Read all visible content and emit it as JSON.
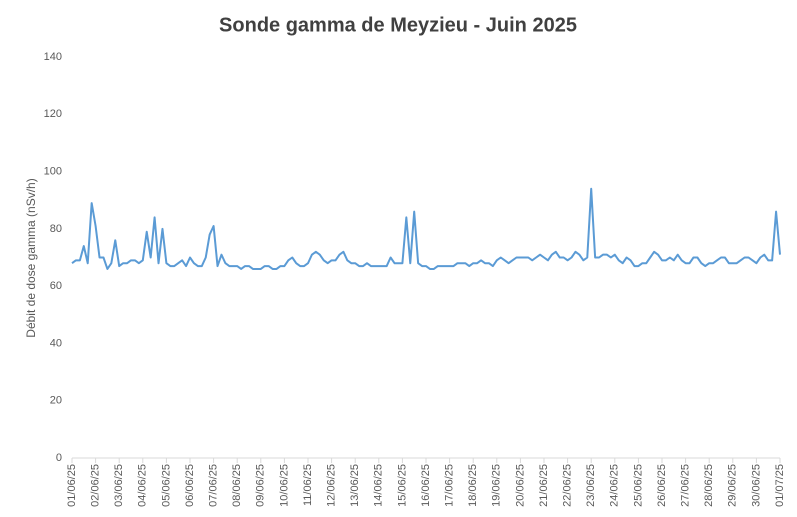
{
  "chart_data": {
    "type": "line",
    "title": "Sonde gamma de Meyzieu - Juin 2025",
    "y_label": "Débit de dose gamma (nSv/h)",
    "categories": [
      "01/06/25",
      null,
      null,
      null,
      null,
      null,
      "02/06/25",
      null,
      null,
      null,
      null,
      null,
      "03/06/25",
      null,
      null,
      null,
      null,
      null,
      "04/06/25",
      null,
      null,
      null,
      null,
      null,
      "05/06/25",
      null,
      null,
      null,
      null,
      null,
      "06/06/25",
      null,
      null,
      null,
      null,
      null,
      "07/06/25",
      null,
      null,
      null,
      null,
      null,
      "08/06/25",
      null,
      null,
      null,
      null,
      null,
      "09/06/25",
      null,
      null,
      null,
      null,
      null,
      "10/06/25",
      null,
      null,
      null,
      null,
      null,
      "11/06/25",
      null,
      null,
      null,
      null,
      null,
      "12/06/25",
      null,
      null,
      null,
      null,
      null,
      "13/06/25",
      null,
      null,
      null,
      null,
      null,
      "14/06/25",
      null,
      null,
      null,
      null,
      null,
      "15/06/25",
      null,
      null,
      null,
      null,
      null,
      "16/06/25",
      null,
      null,
      null,
      null,
      null,
      "17/06/25",
      null,
      null,
      null,
      null,
      null,
      "18/06/25",
      null,
      null,
      null,
      null,
      null,
      "19/06/25",
      null,
      null,
      null,
      null,
      null,
      "20/06/25",
      null,
      null,
      null,
      null,
      null,
      "21/06/25",
      null,
      null,
      null,
      null,
      null,
      "22/06/25",
      null,
      null,
      null,
      null,
      null,
      "23/06/25",
      null,
      null,
      null,
      null,
      null,
      "24/06/25",
      null,
      null,
      null,
      null,
      null,
      "25/06/25",
      null,
      null,
      null,
      null,
      null,
      "26/06/25",
      null,
      null,
      null,
      null,
      null,
      "27/06/25",
      null,
      null,
      null,
      null,
      null,
      "28/06/25",
      null,
      null,
      null,
      null,
      null,
      "29/06/25",
      null,
      null,
      null,
      null,
      null,
      "30/06/25",
      null,
      null,
      null,
      null,
      null,
      "01/07/25"
    ],
    "series": [
      {
        "name": "Débit de dose gamma",
        "color": "#5b9bd5",
        "values": [
          68,
          69,
          69,
          74,
          68,
          89,
          81,
          70,
          70,
          66,
          68,
          76,
          67,
          68,
          68,
          69,
          69,
          68,
          69,
          79,
          70,
          84,
          68,
          80,
          68,
          67,
          67,
          68,
          69,
          67,
          70,
          68,
          67,
          67,
          70,
          78,
          81,
          67,
          71,
          68,
          67,
          67,
          67,
          66,
          67,
          67,
          66,
          66,
          66,
          67,
          67,
          66,
          66,
          67,
          67,
          69,
          70,
          68,
          67,
          67,
          68,
          71,
          72,
          71,
          69,
          68,
          69,
          69,
          71,
          72,
          69,
          68,
          68,
          67,
          67,
          68,
          67,
          67,
          67,
          67,
          67,
          70,
          68,
          68,
          68,
          84,
          68,
          86,
          68,
          67,
          67,
          66,
          66,
          67,
          67,
          67,
          67,
          67,
          68,
          68,
          68,
          67,
          68,
          68,
          69,
          68,
          68,
          67,
          69,
          70,
          69,
          68,
          69,
          70,
          70,
          70,
          70,
          69,
          70,
          71,
          70,
          69,
          71,
          72,
          70,
          70,
          69,
          70,
          72,
          71,
          69,
          70,
          94,
          70,
          70,
          71,
          71,
          70,
          71,
          69,
          68,
          70,
          69,
          67,
          67,
          68,
          68,
          70,
          72,
          71,
          69,
          69,
          70,
          69,
          71,
          69,
          68,
          68,
          70,
          70,
          68,
          67,
          68,
          68,
          69,
          70,
          70,
          68,
          68,
          68,
          69,
          70,
          70,
          69,
          68,
          70,
          71,
          69,
          69,
          86,
          71
        ]
      }
    ],
    "ylim": [
      0,
      140
    ],
    "yticks": [
      0,
      20,
      40,
      60,
      80,
      100,
      120,
      140
    ],
    "grid": false
  }
}
